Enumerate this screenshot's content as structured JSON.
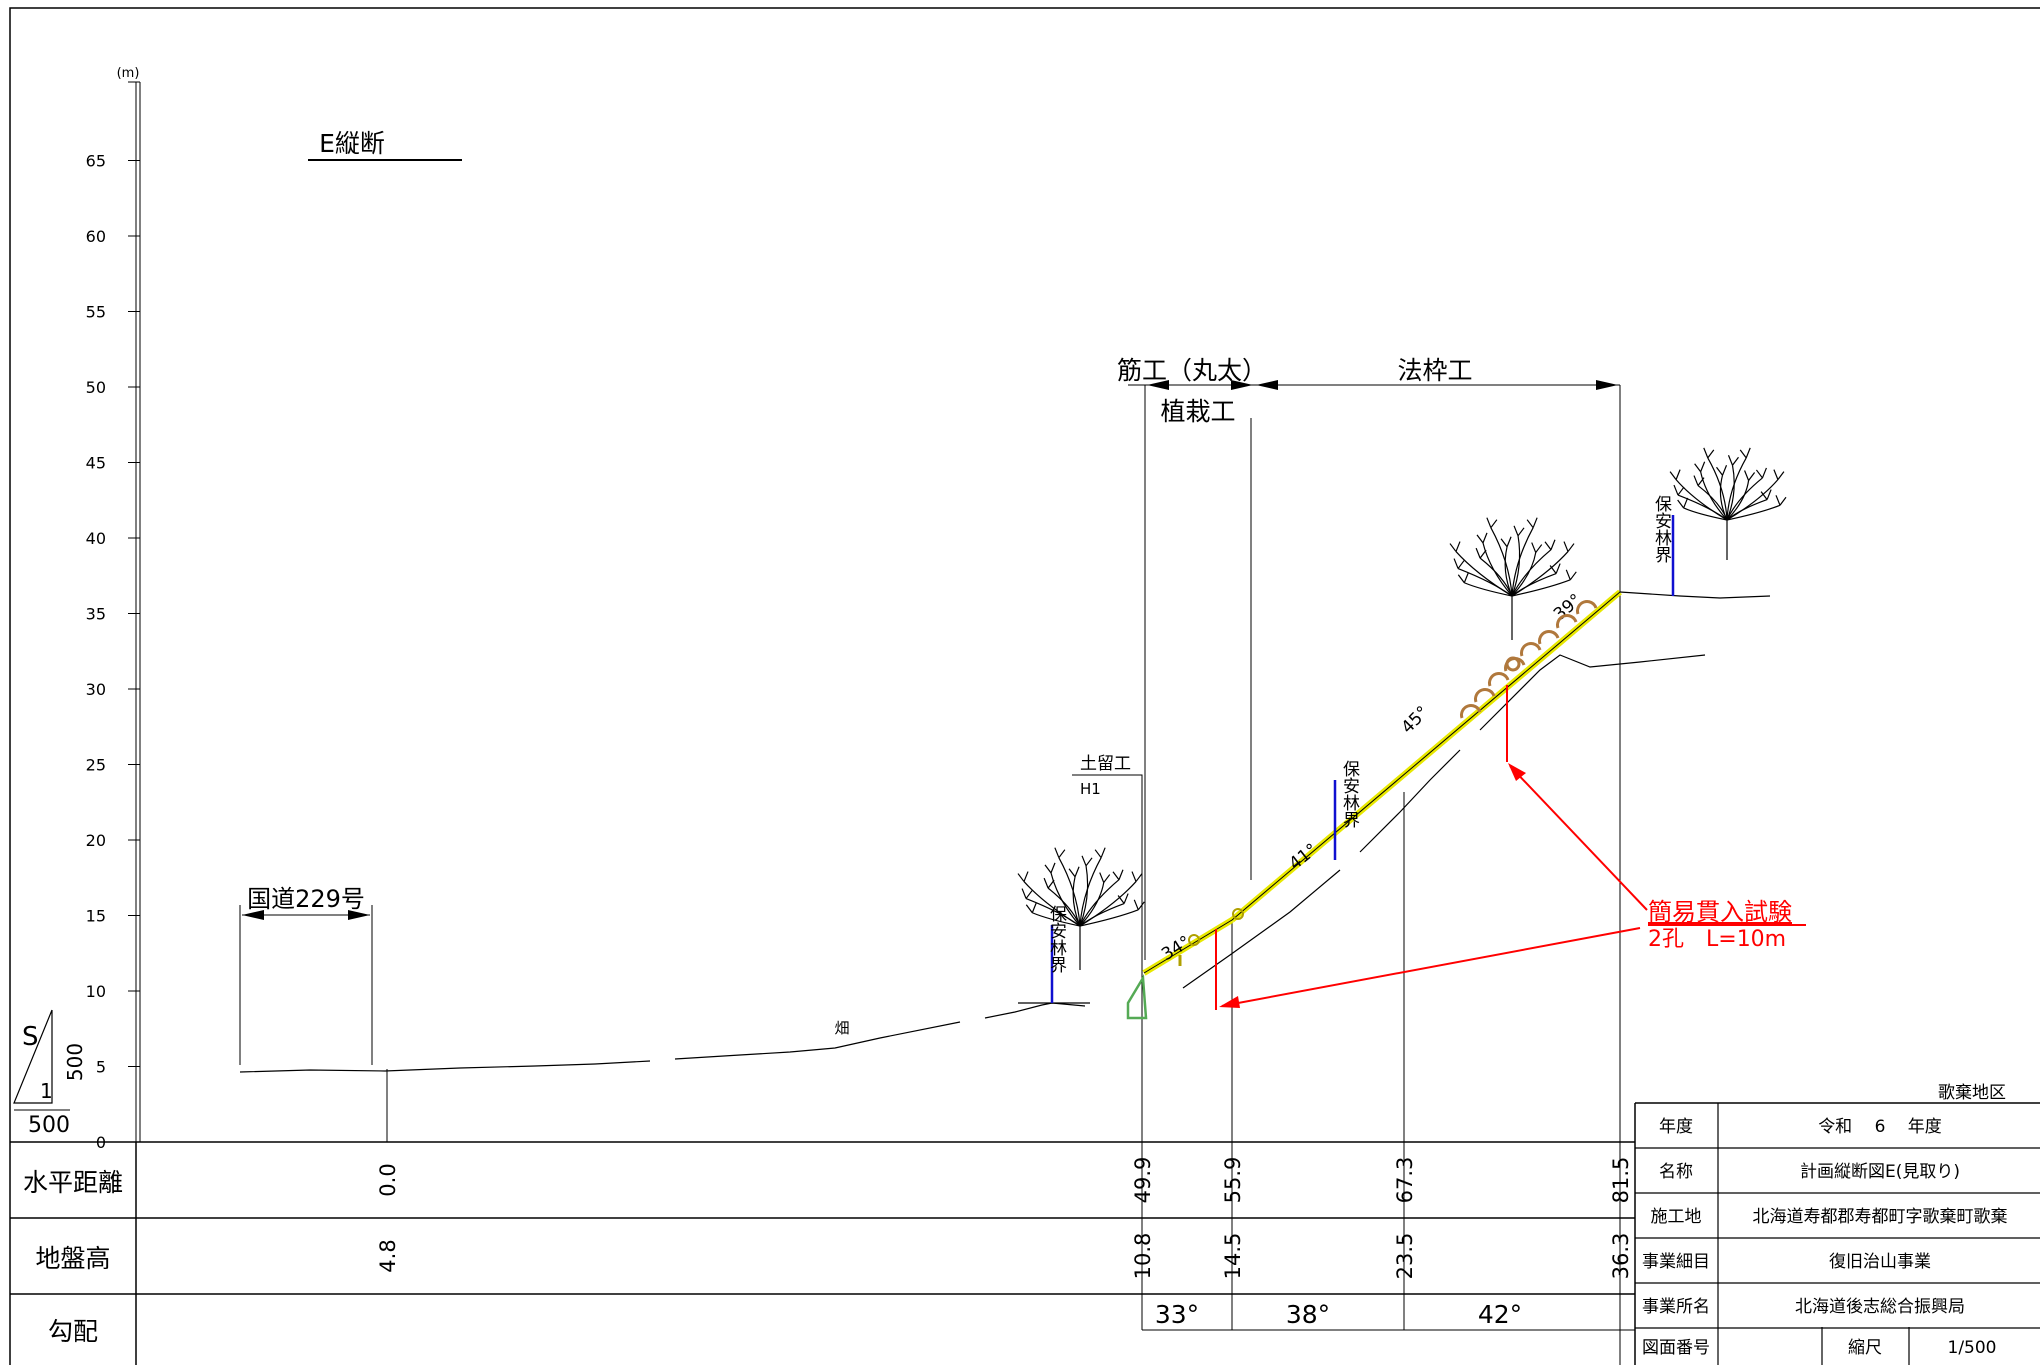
{
  "drawing": {
    "title": "E縦断",
    "unit": "(m)",
    "scale_note": {
      "s": "S",
      "one": "1",
      "five_hundred": "500"
    }
  },
  "chart_data": {
    "type": "line",
    "title": "E縦断",
    "ylabel": "(m)",
    "ylim": [
      0,
      70
    ],
    "y_ticks": [
      0,
      5,
      10,
      15,
      20,
      25,
      30,
      35,
      40,
      45,
      50,
      55,
      60,
      65
    ],
    "xlim": [
      -15,
      82
    ],
    "series": [
      {
        "name": "",
        "x": [
          -14,
          -6,
          0,
          12,
          15,
          21,
          30,
          32,
          39,
          44,
          46,
          48.5,
          49.9,
          55.9,
          67.3,
          71,
          81.5,
          87
        ],
        "y": [
          4.8,
          4.9,
          4.8,
          5.0,
          5.1,
          5.3,
          5.6,
          6.2,
          7.5,
          8.0,
          9.3,
          9.3,
          10.8,
          14.5,
          23.5,
          27,
          36.3,
          36.0
        ]
      },
      {
        "name": "",
        "x": [
          51,
          71,
          81.5,
          87
        ],
        "y": [
          9.5,
          27,
          31,
          32
        ]
      }
    ],
    "angles": [
      {
        "x": 51.5,
        "y": 12,
        "label": "34°"
      },
      {
        "x": 60,
        "y": 18,
        "label": "41°"
      },
      {
        "x": 67.5,
        "y": 27,
        "label": "45°"
      },
      {
        "x": 77.5,
        "y": 34.5,
        "label": "39°"
      }
    ]
  },
  "annotations": {
    "road": "国道229号",
    "field": "畑",
    "retaining": "土留工",
    "retaining_h": "H1",
    "forest_boundary": "保安林界",
    "suji": "筋工（丸太）",
    "shokusai": "植栽工",
    "nori": "法枠工",
    "test_title": "簡易貫入試験",
    "test_detail": "2孔　L=10m"
  },
  "table": {
    "rows": [
      {
        "label": "水平距離",
        "values": [
          "0.0",
          "49.9",
          "55.9",
          "67.3",
          "81.5"
        ]
      },
      {
        "label": "地盤高",
        "values": [
          "4.8",
          "10.8",
          "14.5",
          "23.5",
          "36.3"
        ]
      },
      {
        "label": "勾配",
        "values": [
          "33°",
          "38°",
          "42°"
        ]
      }
    ]
  },
  "title_block": {
    "district": "歌棄地区",
    "rows": [
      {
        "label": "年度",
        "value": "令和　 6　 年度"
      },
      {
        "label": "名称",
        "value": "計画縦断図E(見取り)"
      },
      {
        "label": "施工地",
        "value": "北海道寿都郡寿都町字歌棄町歌棄"
      },
      {
        "label": "事業細目",
        "value": "復旧治山事業"
      },
      {
        "label": "事業所名",
        "value": "北海道後志総合振興局"
      }
    ],
    "drawing_no_label": "図面番号",
    "scale_label": "縮尺",
    "scale_value": "1/500"
  },
  "colors": {
    "slope_frame": "#e8e800",
    "forest": "#1010d0",
    "test": "#ff0000",
    "retaining": "#55aa55",
    "mound": "#b0783c"
  }
}
